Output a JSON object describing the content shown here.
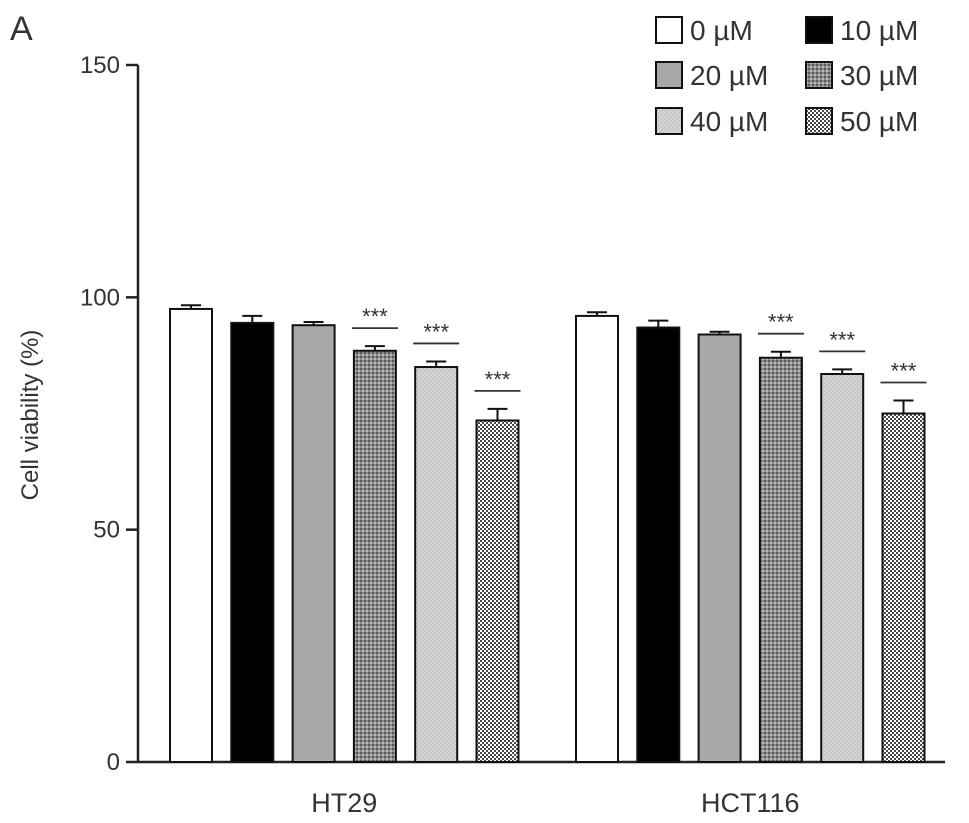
{
  "panel_label": "A",
  "chart_data": {
    "type": "bar",
    "title": "",
    "xlabel": "",
    "ylabel": "Cell viability (%)",
    "ylim": [
      0,
      150
    ],
    "yticks": [
      "0",
      "50",
      "100",
      "150"
    ],
    "categories": [
      "HT29",
      "HCT116"
    ],
    "series": [
      {
        "name": "0 µM",
        "values": [
          97.5,
          96.0
        ],
        "errors": [
          0.8,
          0.8
        ],
        "significance": [
          "",
          ""
        ],
        "color": "#ffffff",
        "pattern": "none"
      },
      {
        "name": "10 µM",
        "values": [
          94.5,
          93.5
        ],
        "errors": [
          1.5,
          1.5
        ],
        "significance": [
          "",
          ""
        ],
        "color": "#000000",
        "pattern": "none"
      },
      {
        "name": "20 µM",
        "values": [
          94.0,
          92.0
        ],
        "errors": [
          0.7,
          0.6
        ],
        "significance": [
          "",
          ""
        ],
        "color": "#a8a8a8",
        "pattern": "none"
      },
      {
        "name": "30 µM",
        "values": [
          88.5,
          87.0
        ],
        "errors": [
          1.0,
          1.3
        ],
        "significance": [
          "***",
          "***"
        ],
        "color": "#8c8c8c",
        "pattern": "dots-dark"
      },
      {
        "name": "40 µM",
        "values": [
          85.0,
          83.5
        ],
        "errors": [
          1.2,
          1.0
        ],
        "significance": [
          "***",
          "***"
        ],
        "color": "#d4d4d4",
        "pattern": "diagonal"
      },
      {
        "name": "50 µM",
        "values": [
          73.5,
          75.0
        ],
        "errors": [
          2.5,
          2.8
        ],
        "significance": [
          "***",
          "***"
        ],
        "color": "#ffffff",
        "pattern": "checker"
      }
    ],
    "grid": false,
    "legend_position": "top-right"
  }
}
